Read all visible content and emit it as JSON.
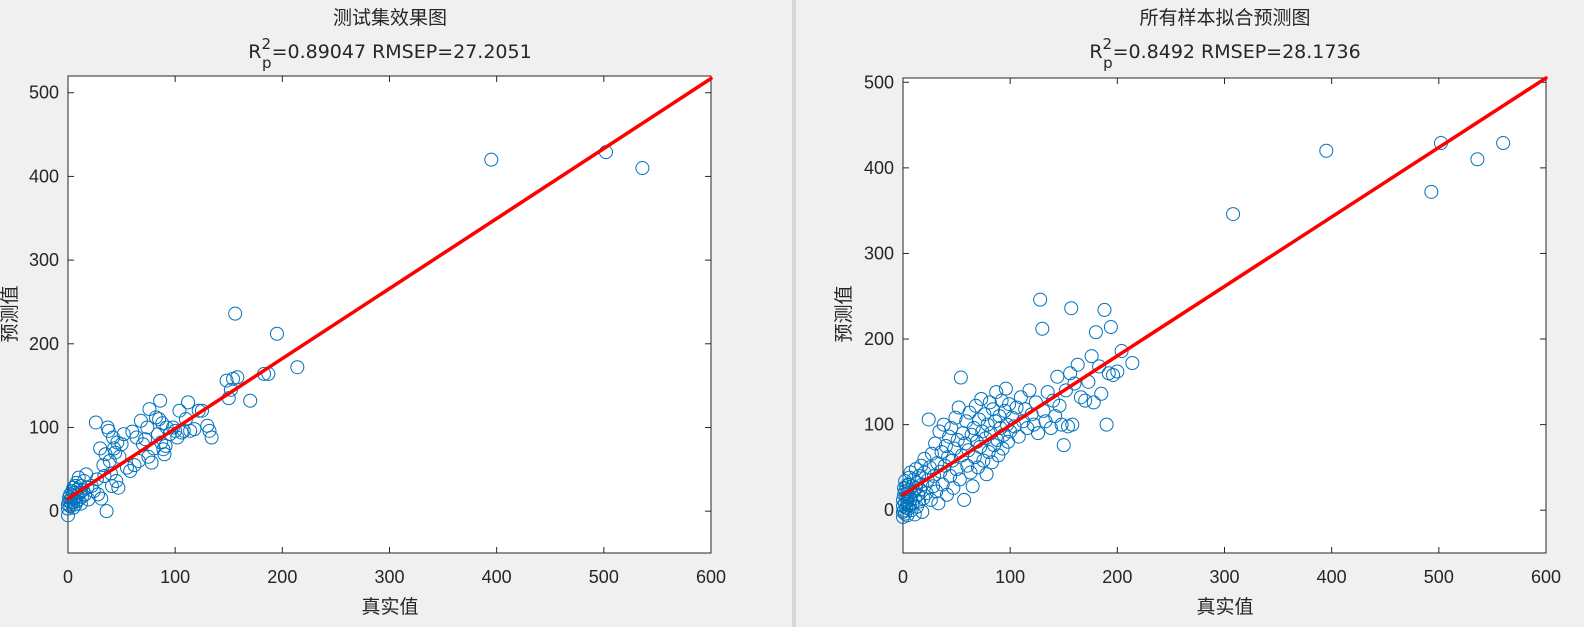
{
  "colors": {
    "figure_bg": "#f0f0f0",
    "axes_bg": "#ffffff",
    "marker": "#0072bd",
    "fit_line": "#ff0000",
    "text": "#262626"
  },
  "chart_data": [
    {
      "type": "scatter",
      "title": "测试集效果图",
      "subtitle": {
        "r_prefix": "R",
        "r_sup": "2",
        "r_sub": "p",
        "text": "=0.89047  RMSEP=27.2051"
      },
      "xlabel": "真实值",
      "ylabel": "预测值",
      "xlim": [
        0,
        600
      ],
      "ylim": [
        -50,
        520
      ],
      "xticks": [
        0,
        100,
        200,
        300,
        400,
        500,
        600
      ],
      "yticks": [
        0,
        100,
        200,
        300,
        400,
        500
      ],
      "grid": false,
      "marker": "open-circle",
      "fit_line": {
        "x": [
          0,
          600
        ],
        "y": [
          15,
          517
        ]
      },
      "points": [
        [
          0,
          -5
        ],
        [
          0,
          3
        ],
        [
          0,
          8
        ],
        [
          1,
          12
        ],
        [
          1,
          16
        ],
        [
          2,
          6
        ],
        [
          2,
          20
        ],
        [
          3,
          10
        ],
        [
          3,
          14
        ],
        [
          4,
          18
        ],
        [
          4,
          24
        ],
        [
          5,
          4
        ],
        [
          5,
          11
        ],
        [
          5,
          28
        ],
        [
          6,
          15
        ],
        [
          6,
          22
        ],
        [
          7,
          8
        ],
        [
          7,
          30
        ],
        [
          8,
          12
        ],
        [
          8,
          34
        ],
        [
          9,
          19
        ],
        [
          9,
          26
        ],
        [
          10,
          14
        ],
        [
          10,
          40
        ],
        [
          11,
          22
        ],
        [
          12,
          9
        ],
        [
          12,
          30
        ],
        [
          13,
          17
        ],
        [
          14,
          25
        ],
        [
          15,
          36
        ],
        [
          16,
          20
        ],
        [
          17,
          44
        ],
        [
          18,
          28
        ],
        [
          19,
          14
        ],
        [
          22,
          30
        ],
        [
          24,
          24
        ],
        [
          26,
          106
        ],
        [
          27,
          38
        ],
        [
          28,
          20
        ],
        [
          30,
          75
        ],
        [
          31,
          15
        ],
        [
          33,
          55
        ],
        [
          34,
          42
        ],
        [
          35,
          68
        ],
        [
          36,
          0
        ],
        [
          37,
          100
        ],
        [
          38,
          96
        ],
        [
          39,
          60
        ],
        [
          40,
          45
        ],
        [
          41,
          30
        ],
        [
          42,
          88
        ],
        [
          43,
          75
        ],
        [
          44,
          70
        ],
        [
          45,
          36
        ],
        [
          46,
          82
        ],
        [
          47,
          28
        ],
        [
          48,
          65
        ],
        [
          50,
          80
        ],
        [
          52,
          92
        ],
        [
          55,
          52
        ],
        [
          58,
          48
        ],
        [
          60,
          95
        ],
        [
          62,
          55
        ],
        [
          64,
          88
        ],
        [
          66,
          60
        ],
        [
          68,
          108
        ],
        [
          70,
          80
        ],
        [
          72,
          86
        ],
        [
          74,
          100
        ],
        [
          75,
          65
        ],
        [
          76,
          122
        ],
        [
          78,
          58
        ],
        [
          80,
          75
        ],
        [
          82,
          112
        ],
        [
          84,
          92
        ],
        [
          85,
          110
        ],
        [
          86,
          132
        ],
        [
          87,
          82
        ],
        [
          88,
          105
        ],
        [
          89,
          74
        ],
        [
          90,
          68
        ],
        [
          91,
          78
        ],
        [
          92,
          100
        ],
        [
          95,
          92
        ],
        [
          98,
          100
        ],
        [
          100,
          96
        ],
        [
          102,
          88
        ],
        [
          104,
          120
        ],
        [
          106,
          94
        ],
        [
          108,
          96
        ],
        [
          110,
          110
        ],
        [
          112,
          130
        ],
        [
          114,
          96
        ],
        [
          118,
          98
        ],
        [
          122,
          120
        ],
        [
          125,
          120
        ],
        [
          130,
          102
        ],
        [
          132,
          96
        ],
        [
          134,
          88
        ],
        [
          148,
          156
        ],
        [
          150,
          135
        ],
        [
          152,
          145
        ],
        [
          154,
          158
        ],
        [
          156,
          236
        ],
        [
          158,
          160
        ],
        [
          170,
          132
        ],
        [
          183,
          164
        ],
        [
          187,
          164
        ],
        [
          195,
          212
        ],
        [
          214,
          172
        ],
        [
          395,
          420
        ],
        [
          502,
          429
        ],
        [
          536,
          410
        ]
      ]
    },
    {
      "type": "scatter",
      "title": "所有样本拟合预测图",
      "subtitle": {
        "r_prefix": "R",
        "r_sup": "2",
        "r_sub": "p",
        "text": "=0.8492  RMSEP=28.1736"
      },
      "xlabel": "真实值",
      "ylabel": "预测值",
      "xlim": [
        0,
        600
      ],
      "ylim": [
        -50,
        505
      ],
      "xticks": [
        0,
        100,
        200,
        300,
        400,
        500,
        600
      ],
      "yticks": [
        0,
        100,
        200,
        300,
        400,
        500
      ],
      "grid": false,
      "marker": "open-circle",
      "fit_line": {
        "x": [
          0,
          600
        ],
        "y": [
          18,
          505
        ]
      },
      "points": [
        [
          0,
          -8
        ],
        [
          0,
          -2
        ],
        [
          0,
          5
        ],
        [
          0,
          12
        ],
        [
          1,
          0
        ],
        [
          1,
          18
        ],
        [
          1,
          26
        ],
        [
          2,
          -4
        ],
        [
          2,
          8
        ],
        [
          2,
          22
        ],
        [
          2,
          34
        ],
        [
          3,
          3
        ],
        [
          3,
          15
        ],
        [
          3,
          28
        ],
        [
          4,
          -6
        ],
        [
          4,
          10
        ],
        [
          4,
          20
        ],
        [
          5,
          2
        ],
        [
          5,
          16
        ],
        [
          5,
          30
        ],
        [
          6,
          6
        ],
        [
          6,
          24
        ],
        [
          6,
          38
        ],
        [
          7,
          12
        ],
        [
          7,
          44
        ],
        [
          8,
          0
        ],
        [
          8,
          18
        ],
        [
          9,
          28
        ],
        [
          9,
          8
        ],
        [
          10,
          22
        ],
        [
          10,
          36
        ],
        [
          11,
          -5
        ],
        [
          11,
          14
        ],
        [
          12,
          26
        ],
        [
          12,
          48
        ],
        [
          13,
          4
        ],
        [
          13,
          32
        ],
        [
          14,
          18
        ],
        [
          15,
          40
        ],
        [
          15,
          10
        ],
        [
          16,
          24
        ],
        [
          17,
          52
        ],
        [
          18,
          30
        ],
        [
          18,
          -2
        ],
        [
          19,
          14
        ],
        [
          20,
          44
        ],
        [
          20,
          60
        ],
        [
          22,
          20
        ],
        [
          23,
          35
        ],
        [
          24,
          106
        ],
        [
          25,
          50
        ],
        [
          26,
          12
        ],
        [
          27,
          66
        ],
        [
          28,
          28
        ],
        [
          29,
          40
        ],
        [
          30,
          78
        ],
        [
          31,
          22
        ],
        [
          32,
          55
        ],
        [
          33,
          8
        ],
        [
          34,
          92
        ],
        [
          35,
          45
        ],
        [
          36,
          68
        ],
        [
          37,
          30
        ],
        [
          38,
          100
        ],
        [
          39,
          52
        ],
        [
          40,
          75
        ],
        [
          41,
          18
        ],
        [
          42,
          62
        ],
        [
          43,
          86
        ],
        [
          44,
          40
        ],
        [
          45,
          96
        ],
        [
          46,
          58
        ],
        [
          47,
          26
        ],
        [
          48,
          72
        ],
        [
          49,
          108
        ],
        [
          50,
          48
        ],
        [
          51,
          82
        ],
        [
          52,
          120
        ],
        [
          53,
          36
        ],
        [
          54,
          155
        ],
        [
          55,
          64
        ],
        [
          56,
          90
        ],
        [
          57,
          12
        ],
        [
          58,
          78
        ],
        [
          59,
          104
        ],
        [
          60,
          52
        ],
        [
          61,
          70
        ],
        [
          62,
          114
        ],
        [
          63,
          44
        ],
        [
          64,
          88
        ],
        [
          65,
          28
        ],
        [
          66,
          96
        ],
        [
          67,
          62
        ],
        [
          68,
          122
        ],
        [
          69,
          80
        ],
        [
          70,
          50
        ],
        [
          71,
          106
        ],
        [
          72,
          74
        ],
        [
          73,
          130
        ],
        [
          74,
          92
        ],
        [
          75,
          58
        ],
        [
          76,
          112
        ],
        [
          77,
          84
        ],
        [
          78,
          42
        ],
        [
          79,
          100
        ],
        [
          80,
          68
        ],
        [
          81,
          126
        ],
        [
          82,
          90
        ],
        [
          83,
          56
        ],
        [
          84,
          118
        ],
        [
          85,
          76
        ],
        [
          86,
          104
        ],
        [
          87,
          138
        ],
        [
          88,
          82
        ],
        [
          89,
          64
        ],
        [
          90,
          110
        ],
        [
          91,
          96
        ],
        [
          92,
          128
        ],
        [
          93,
          72
        ],
        [
          94,
          88
        ],
        [
          95,
          116
        ],
        [
          96,
          142
        ],
        [
          97,
          100
        ],
        [
          98,
          80
        ],
        [
          99,
          124
        ],
        [
          100,
          92
        ],
        [
          102,
          108
        ],
        [
          104,
          98
        ],
        [
          106,
          120
        ],
        [
          108,
          86
        ],
        [
          110,
          132
        ],
        [
          112,
          104
        ],
        [
          114,
          118
        ],
        [
          116,
          96
        ],
        [
          118,
          140
        ],
        [
          120,
          112
        ],
        [
          122,
          100
        ],
        [
          124,
          126
        ],
        [
          126,
          90
        ],
        [
          128,
          246
        ],
        [
          130,
          212
        ],
        [
          131,
          116
        ],
        [
          133,
          104
        ],
        [
          135,
          138
        ],
        [
          138,
          96
        ],
        [
          140,
          128
        ],
        [
          142,
          110
        ],
        [
          144,
          156
        ],
        [
          146,
          122
        ],
        [
          148,
          100
        ],
        [
          150,
          76
        ],
        [
          152,
          140
        ],
        [
          154,
          98
        ],
        [
          156,
          160
        ],
        [
          157,
          236
        ],
        [
          158,
          100
        ],
        [
          160,
          148
        ],
        [
          163,
          170
        ],
        [
          166,
          132
        ],
        [
          170,
          128
        ],
        [
          173,
          150
        ],
        [
          176,
          180
        ],
        [
          178,
          126
        ],
        [
          180,
          208
        ],
        [
          183,
          168
        ],
        [
          185,
          136
        ],
        [
          188,
          234
        ],
        [
          190,
          100
        ],
        [
          192,
          160
        ],
        [
          194,
          214
        ],
        [
          196,
          158
        ],
        [
          200,
          162
        ],
        [
          204,
          186
        ],
        [
          214,
          172
        ],
        [
          308,
          346
        ],
        [
          395,
          420
        ],
        [
          493,
          372
        ],
        [
          502,
          429
        ],
        [
          536,
          410
        ],
        [
          560,
          429
        ]
      ]
    }
  ]
}
